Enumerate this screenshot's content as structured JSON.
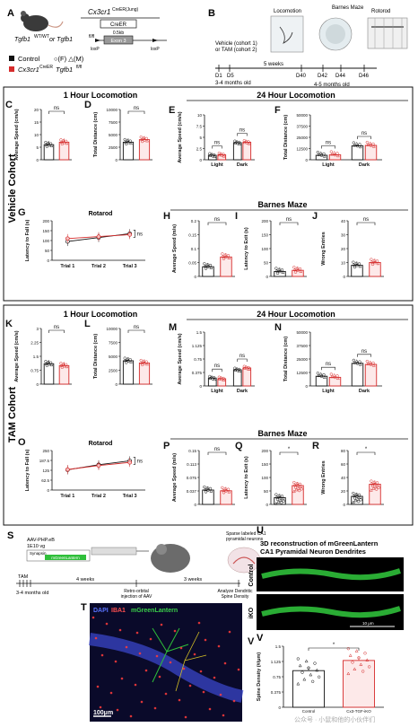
{
  "panels": {
    "A": "A",
    "B": "B",
    "C": "C",
    "D": "D",
    "E": "E",
    "F": "F",
    "G": "G",
    "H": "H",
    "I": "I",
    "J": "J",
    "K": "K",
    "L": "L",
    "M": "M",
    "N": "N",
    "O": "O",
    "P": "P",
    "Q": "Q",
    "R": "R",
    "S": "S",
    "T": "T",
    "U": "U",
    "V": "V"
  },
  "panelA": {
    "gene": "Cx3cr1",
    "gene_sup": "CreER(Jung)",
    "genotype": "Tgfb1",
    "genotype_sup": "WT/WT",
    "genotype_or": " or Tgfb1",
    "genotype_sup2": "fl/fl",
    "creer": "CreER",
    "kb": "0.5kb",
    "exon": "Exon 3",
    "loxp1": "loxP",
    "loxp2": "loxP",
    "legend_control": "Control",
    "legend_fm": "○(F)  △(M)",
    "legend_cko": "Cx3cr1",
    "legend_cko_sup": "CreER",
    "legend_cko2": "Tgfb1",
    "legend_cko2_sup": "fl/fl"
  },
  "panelB": {
    "vehicle": "Vehicle (cohort 1)",
    "tam": "or TAM (cohort 2)",
    "d1": "D1",
    "d5": "D5",
    "age": "3-4 months old",
    "weeks5": "5 weeks",
    "d40": "D40",
    "d42": "D42",
    "d44": "D44",
    "d46": "D46",
    "age2": "4-5 months old",
    "loco": "Locomotion",
    "barnes": "Barnes Maze",
    "rotorod": "Rotorod"
  },
  "cohorts": {
    "vehicle": "Vehicle Cohort",
    "tam": "TAM Cohort"
  },
  "titles": {
    "loco1h": "1 Hour Locomotion",
    "loco24h": "24 Hour Locomotion",
    "rotarod": "Rotarod",
    "barnes": "Barnes Maze"
  },
  "axes": {
    "avg_speed_cm": "Average Speed (cm/s)",
    "total_dist": "Total Distance (cm)",
    "latency_fall": "Latency to Fall (s)",
    "avg_speed_m": "Average Speed (m/s)",
    "latency_exit": "Latency to Exit (s)",
    "wrong": "Wrong Entries",
    "light": "Light",
    "dark": "Dark",
    "trial1": "Trial 1",
    "trial2": "Trial 2",
    "trial3": "Trial 3"
  },
  "sig": {
    "ns": "ns",
    "star": "*"
  },
  "panelS": {
    "aav": "AAV-PHP.eB",
    "titer": "1E10 vg",
    "synapsin": "Synapsin",
    "mgl": "mGreenLantern",
    "sparse": "Sparse labeled CA1",
    "pyr": "pyramidal neurons",
    "tam": "TAM",
    "age": "3-4 months old",
    "w4": "4 weeks",
    "w3": "3 weeks",
    "retro": "Retro-orbital",
    "inj": "injection of AAV",
    "analyze": "Analyze Dendritic",
    "spine": "Spine Density"
  },
  "panelT": {
    "dapi": "DAPI",
    "iba1": "IBA1",
    "mgl": "mGreenLantern",
    "scale": "100μm"
  },
  "panelU": {
    "title1": "3D reconstruction of mGreenLantern",
    "title2": "CA1 Pyramidal Neuron Dendrites",
    "control": "Control",
    "iko": "iKO",
    "scale": "10 μm"
  },
  "panelV": {
    "ylabel": "Spine Density (#/μm)",
    "x1": "Control",
    "x2": "Cx3-TGF-iKO"
  },
  "watermark": "公众号 · 小鼠和他的小伙伴们",
  "colors": {
    "control": "#111111",
    "cko": "#d62b2b",
    "green": "#2fbf3a"
  },
  "chart_data": [
    {
      "type": "bar",
      "panel": "C",
      "categories": [
        "Control",
        "cKO"
      ],
      "values": [
        6,
        7
      ],
      "ylim": [
        0,
        20
      ],
      "ylabel": "Average Speed (cm/s)"
    },
    {
      "type": "bar",
      "panel": "D",
      "categories": [
        "Control",
        "cKO"
      ],
      "values": [
        3500,
        4000
      ],
      "ylim": [
        0,
        10000
      ],
      "ylabel": "Total Distance (cm)"
    },
    {
      "type": "bar",
      "panel": "E",
      "categories": [
        "Light",
        "Dark"
      ],
      "series": [
        {
          "name": "Control",
          "values": [
            1.0,
            3.8
          ]
        },
        {
          "name": "cKO",
          "values": [
            1.1,
            3.9
          ]
        }
      ],
      "ylim": [
        0,
        10
      ],
      "ylabel": "Average Speed (cm/s)"
    },
    {
      "type": "bar",
      "panel": "F",
      "categories": [
        "Light",
        "Dark"
      ],
      "series": [
        {
          "name": "Control",
          "values": [
            5000,
            15500
          ]
        },
        {
          "name": "cKO",
          "values": [
            5500,
            16000
          ]
        }
      ],
      "ylim": [
        0,
        50000
      ],
      "ylabel": "Total Distance (cm)"
    },
    {
      "type": "line",
      "panel": "G",
      "x": [
        "Trial 1",
        "Trial 2",
        "Trial 3"
      ],
      "series": [
        {
          "name": "Control",
          "values": [
            95,
            115,
            135
          ]
        },
        {
          "name": "cKO",
          "values": [
            110,
            120,
            130
          ]
        }
      ],
      "ylim": [
        0,
        200
      ],
      "ylabel": "Latency to Fall (s)"
    },
    {
      "type": "bar",
      "panel": "H",
      "categories": [
        "Control",
        "cKO"
      ],
      "values": [
        0.035,
        0.07
      ],
      "ylim": [
        0,
        0.2
      ],
      "ylabel": "Average Speed (m/s)"
    },
    {
      "type": "bar",
      "panel": "I",
      "categories": [
        "Control",
        "cKO"
      ],
      "values": [
        18,
        22
      ],
      "ylim": [
        0,
        200
      ],
      "ylabel": "Latency to Exit (s)"
    },
    {
      "type": "bar",
      "panel": "J",
      "categories": [
        "Control",
        "cKO"
      ],
      "values": [
        8,
        10
      ],
      "ylim": [
        0,
        40
      ],
      "ylabel": "Wrong Entries"
    },
    {
      "type": "bar",
      "panel": "K",
      "categories": [
        "Control",
        "cKO"
      ],
      "values": [
        1.1,
        1.0
      ],
      "ylim": [
        0,
        3
      ],
      "ylabel": "Average Speed (cm/s)"
    },
    {
      "type": "bar",
      "panel": "L",
      "categories": [
        "Control",
        "cKO"
      ],
      "values": [
        4200,
        3800
      ],
      "ylim": [
        0,
        10000
      ],
      "ylabel": "Total Distance (cm)"
    },
    {
      "type": "bar",
      "panel": "M",
      "categories": [
        "Light",
        "Dark"
      ],
      "series": [
        {
          "name": "Control",
          "values": [
            0.22,
            0.45
          ]
        },
        {
          "name": "cKO",
          "values": [
            0.2,
            0.5
          ]
        }
      ],
      "ylim": [
        0,
        1.5
      ],
      "ylabel": "Average Speed (cm/s)"
    },
    {
      "type": "bar",
      "panel": "N",
      "categories": [
        "Light",
        "Dark"
      ],
      "series": [
        {
          "name": "Control",
          "values": [
            9000,
            21000
          ]
        },
        {
          "name": "cKO",
          "values": [
            8000,
            20000
          ]
        }
      ],
      "ylim": [
        0,
        50000
      ],
      "ylabel": "Total Distance (cm)"
    },
    {
      "type": "line",
      "panel": "O",
      "x": [
        "Trial 1",
        "Trial 2",
        "Trial 3"
      ],
      "series": [
        {
          "name": "Control",
          "values": [
            128,
            160,
            185
          ]
        },
        {
          "name": "cKO",
          "values": [
            130,
            155,
            175
          ]
        }
      ],
      "ylim": [
        0,
        250
      ],
      "ylabel": "Latency to Fall (s)"
    },
    {
      "type": "bar",
      "panel": "P",
      "categories": [
        "Control",
        "cKO"
      ],
      "values": [
        0.04,
        0.038
      ],
      "ylim": [
        0,
        0.15
      ],
      "ylabel": "Average Speed (m/s)"
    },
    {
      "type": "bar",
      "panel": "Q",
      "categories": [
        "Control",
        "cKO"
      ],
      "values": [
        25,
        70
      ],
      "ylim": [
        0,
        200
      ],
      "ylabel": "Latency to Exit (s)"
    },
    {
      "type": "bar",
      "panel": "R",
      "categories": [
        "Control",
        "cKO"
      ],
      "values": [
        12,
        30
      ],
      "ylim": [
        0,
        80
      ],
      "ylabel": "Wrong Entries"
    },
    {
      "type": "bar",
      "panel": "V",
      "categories": [
        "Control",
        "Cx3-TGF-iKO"
      ],
      "values": [
        0.9,
        1.15
      ],
      "ylim": [
        0,
        1.5
      ],
      "ylabel": "Spine Density (#/μm)"
    }
  ]
}
